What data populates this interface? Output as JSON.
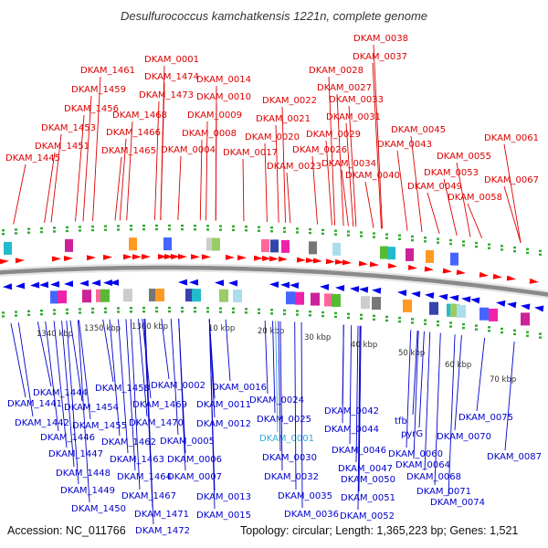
{
  "title": "Desulfurococcus kamchatkensis 1221n, complete genome",
  "footer": {
    "accession": "Accession: NC_011766",
    "summary": "Topology: circular; Length: 1,365,223 bp; Genes: 1,521"
  },
  "colors": {
    "top_label": "#dd0000",
    "bottom_label": "#0000cc",
    "highlight_label": "#33aadd",
    "forward_arrow": "#ff0000",
    "reverse_arrow": "#0000ee",
    "backbone": "#8a8a8a",
    "tick_dots": "#33aa33"
  },
  "scale_labels": [
    "1340 kbp",
    "1350 kbp",
    "1360 kbp",
    "10 kbp",
    "20 kbp",
    "30 kbp",
    "40 kbp",
    "50 kbp",
    "60 kbp",
    "70 kbp"
  ],
  "top_genes": [
    "DKAM_0001",
    "DKAM_1461",
    "DKAM_1474",
    "DKAM_0014",
    "DKAM_1459",
    "DKAM_1473",
    "DKAM_0010",
    "DKAM_1456",
    "DKAM_1468",
    "DKAM_0009",
    "DKAM_1453",
    "DKAM_1466",
    "DKAM_0008",
    "DKAM_1451",
    "DKAM_1465",
    "DKAM_0004",
    "DKAM_1445",
    "DKAM_0017",
    "DKAM_0022",
    "DKAM_0021",
    "DKAM_0020",
    "DKAM_0023",
    "DKAM_0038",
    "DKAM_0037",
    "DKAM_0028",
    "DKAM_0027",
    "DKAM_0033",
    "DKAM_0031",
    "DKAM_0029",
    "DKAM_0026",
    "DKAM_0034",
    "DKAM_0040",
    "DKAM_0045",
    "DKAM_0043",
    "DKAM_0055",
    "DKAM_0061",
    "DKAM_0053",
    "DKAM_0049",
    "DKAM_0067",
    "DKAM_0058"
  ],
  "bottom_genes": [
    "DKAM_1444",
    "DKAM_1441",
    "DKAM_1442",
    "DKAM_1446",
    "DKAM_1447",
    "DKAM_1448",
    "DKAM_1449",
    "DKAM_1450",
    "DKAM_1454",
    "DKAM_1455",
    "DKAM_1458",
    "DKAM_1462",
    "DKAM_1463",
    "DKAM_1464",
    "DKAM_1467",
    "DKAM_1469",
    "DKAM_1470",
    "DKAM_1471",
    "DKAM_1472",
    "DKAM_0002",
    "DKAM_0005",
    "DKAM_0006",
    "DKAM_0007",
    "DKAM_0011",
    "DKAM_0012",
    "DKAM_0013",
    "DKAM_0015",
    "DKAM_0016",
    "DKAM_0024",
    "DKAM_0025",
    "DKAM_0001",
    "DKAM_0030",
    "DKAM_0032",
    "DKAM_0035",
    "DKAM_0036",
    "DKAM_0042",
    "DKAM_0044",
    "DKAM_0046",
    "DKAM_0047",
    "DKAM_0050",
    "DKAM_0051",
    "DKAM_0052",
    "tfb",
    "pyrG",
    "DKAM_0060",
    "DKAM_0064",
    "DKAM_0068",
    "DKAM_0070",
    "DKAM_0071",
    "DKAM_0074",
    "DKAM_0075",
    "DKAM_0087"
  ]
}
